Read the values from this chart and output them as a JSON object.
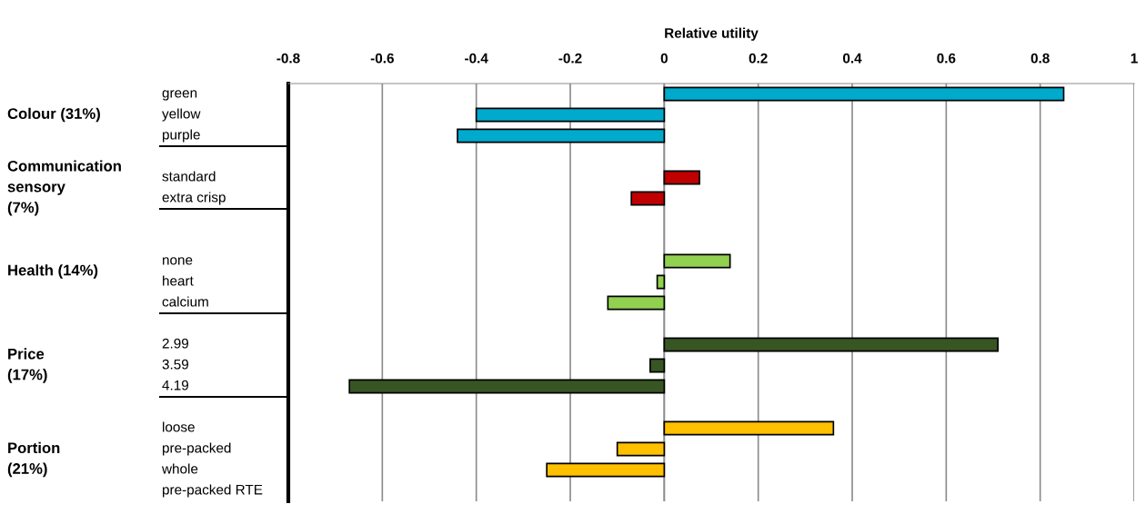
{
  "chart_data": {
    "type": "bar",
    "orientation": "horizontal",
    "xlabel": "Relative utility",
    "categories": [
      "green",
      "yellow",
      "purple",
      null,
      "standard",
      "extra crisp",
      null,
      null,
      "none",
      "heart",
      "calcium",
      null,
      "2.99",
      "3.59",
      "4.19",
      null,
      "loose",
      "pre-packed",
      "whole",
      "pre-packed RTE"
    ],
    "values": [
      0.85,
      -0.4,
      -0.44,
      null,
      0.075,
      -0.07,
      null,
      null,
      0.14,
      -0.015,
      -0.12,
      null,
      0.71,
      -0.03,
      -0.67,
      null,
      0.36,
      -0.1,
      -0.25,
      null
    ],
    "colors": [
      "#00aacc",
      "#00aacc",
      "#00aacc",
      null,
      "#c00000",
      "#c00000",
      null,
      null,
      "#92d050",
      "#92d050",
      "#92d050",
      null,
      "#375623",
      "#375623",
      "#375623",
      null,
      "#ffc000",
      "#ffc000",
      "#ffc000",
      "#ffc000"
    ],
    "annotations": [
      "Colour (31%)",
      "Communication\nsensory\n(7%)",
      "Health (14%)",
      "Price\n(17%)",
      "Portion\n(21%)"
    ],
    "xlim": [
      -0.8,
      1
    ],
    "xticks": [
      -0.8,
      -0.6,
      -0.4,
      -0.2,
      {
        "value": 0,
        "label": "0"
      },
      0.2,
      0.4,
      0.6,
      0.8,
      1
    ],
    "grid": "x"
  }
}
